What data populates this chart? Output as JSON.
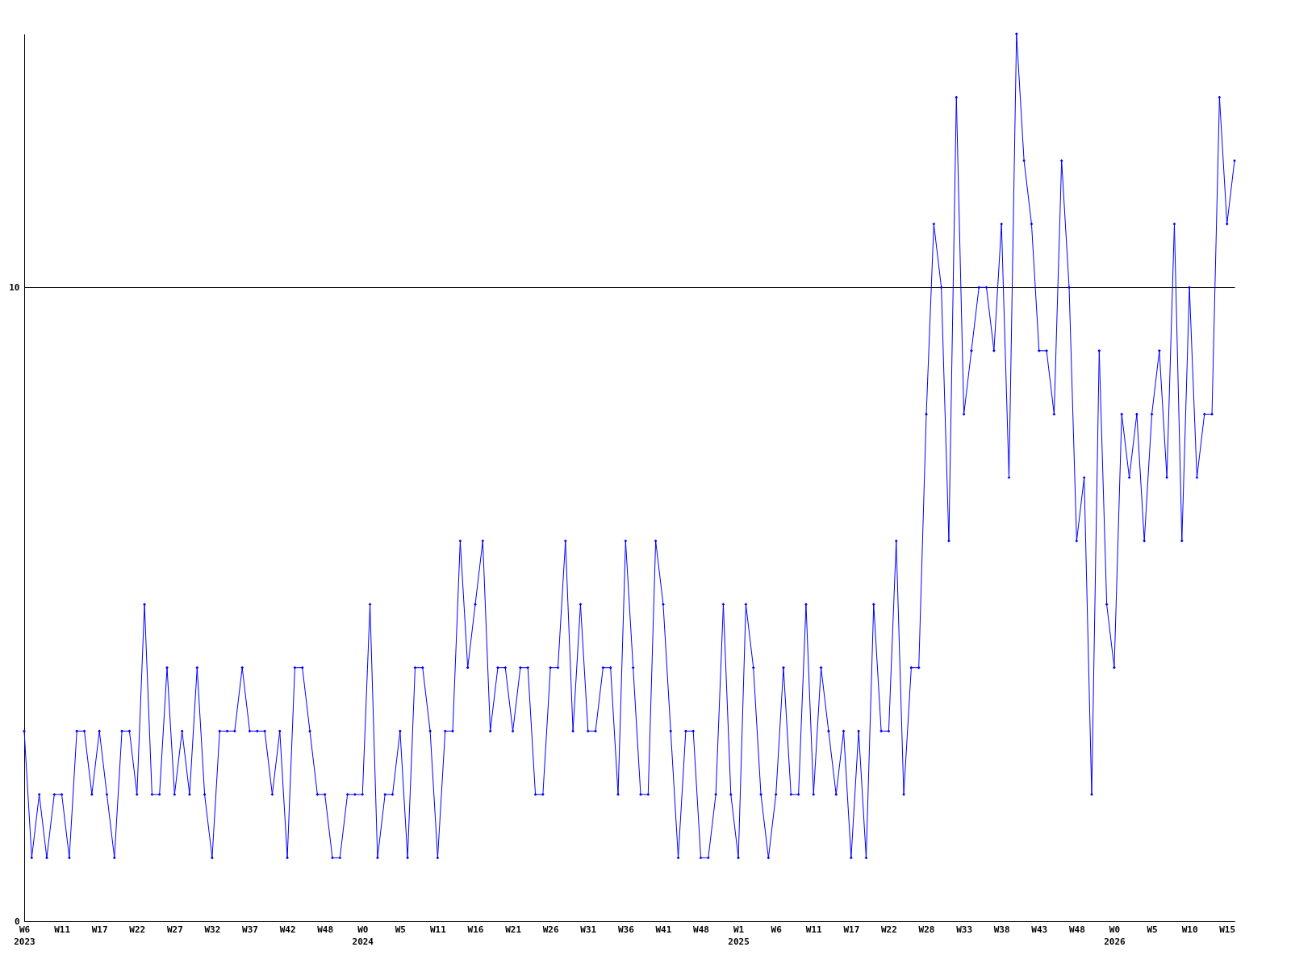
{
  "chart_data": {
    "type": "line",
    "categories": [
      "W6\n2023",
      null,
      null,
      null,
      null,
      "W11",
      null,
      null,
      null,
      null,
      "W17",
      null,
      null,
      null,
      null,
      "W22",
      null,
      null,
      null,
      null,
      "W27",
      null,
      null,
      null,
      null,
      "W32",
      null,
      null,
      null,
      null,
      "W37",
      null,
      null,
      null,
      null,
      "W42",
      null,
      null,
      null,
      null,
      "W48",
      null,
      null,
      null,
      null,
      "W0\n2024",
      null,
      null,
      null,
      null,
      "W5",
      null,
      null,
      null,
      null,
      "W11",
      null,
      null,
      null,
      null,
      "W16",
      null,
      null,
      null,
      null,
      "W21",
      null,
      null,
      null,
      null,
      "W26",
      null,
      null,
      null,
      null,
      "W31",
      null,
      null,
      null,
      null,
      "W36",
      null,
      null,
      null,
      null,
      "W41",
      null,
      null,
      null,
      null,
      "W48",
      null,
      null,
      null,
      null,
      "W1\n2025",
      null,
      null,
      null,
      null,
      "W6",
      null,
      null,
      null,
      null,
      "W11",
      null,
      null,
      null,
      null,
      "W17",
      null,
      null,
      null,
      null,
      "W22",
      null,
      null,
      null,
      null,
      "W28",
      null,
      null,
      null,
      null,
      "W33",
      null,
      null,
      null,
      null,
      "W38",
      null,
      null,
      null,
      null,
      "W43",
      null,
      null,
      null,
      null,
      "W48",
      null,
      null,
      null,
      null,
      "W0\n2026",
      null,
      null,
      null,
      null,
      "W5",
      null,
      null,
      null,
      null,
      "W10",
      null,
      null,
      null,
      null,
      "W15",
      null
    ],
    "series": [
      {
        "color": "#0000ff",
        "values": [
          3,
          1,
          2,
          1,
          2,
          2,
          1,
          3,
          3,
          2,
          3,
          2,
          1,
          3,
          3,
          2,
          5,
          2,
          2,
          4,
          2,
          3,
          2,
          4,
          2,
          1,
          3,
          3,
          3,
          4,
          3,
          3,
          3,
          2,
          3,
          1,
          4,
          4,
          3,
          2,
          2,
          1,
          1,
          2,
          2,
          2,
          5,
          1,
          2,
          2,
          3,
          1,
          4,
          4,
          3,
          1,
          3,
          3,
          6,
          4,
          5,
          6,
          3,
          4,
          4,
          3,
          4,
          4,
          2,
          2,
          4,
          4,
          6,
          3,
          5,
          3,
          3,
          4,
          4,
          2,
          6,
          4,
          2,
          2,
          6,
          5,
          3,
          1,
          3,
          3,
          1,
          1,
          2,
          5,
          2,
          1,
          5,
          4,
          2,
          1,
          2,
          4,
          2,
          2,
          5,
          2,
          4,
          3,
          2,
          3,
          1,
          3,
          1,
          5,
          3,
          3,
          6,
          2,
          4,
          4,
          8,
          11,
          10,
          6,
          13,
          8,
          9,
          10,
          10,
          9,
          11,
          7,
          14,
          12,
          11,
          9,
          9,
          8,
          12,
          10,
          6,
          7,
          2,
          9,
          5,
          4,
          8,
          7,
          8,
          6,
          8,
          9,
          7,
          11,
          6,
          10,
          7,
          8,
          8,
          13,
          11,
          12
        ]
      }
    ],
    "ylim": [
      0,
      14
    ],
    "yticks": [
      0,
      10
    ],
    "grid": "y",
    "marker": "diamond",
    "line_style": "solid"
  }
}
